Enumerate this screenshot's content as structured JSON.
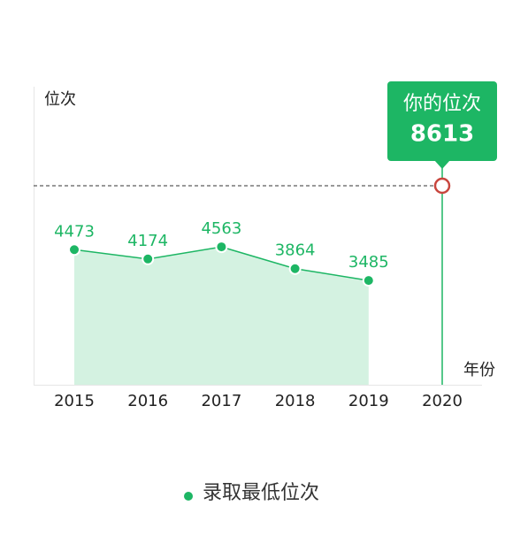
{
  "chart_data": {
    "type": "line",
    "y_label": "位次",
    "x_label": "年份",
    "categories": [
      "2015",
      "2016",
      "2017",
      "2018",
      "2019",
      "2020"
    ],
    "series": [
      {
        "name": "录取最低位次",
        "color": "#1db664",
        "fill": "#d4f2e1",
        "values": [
          4473,
          4174,
          4563,
          3864,
          3485,
          null
        ]
      }
    ],
    "ylim": [
      0,
      9500
    ],
    "highlight": {
      "label": "你的位次",
      "value": 8613,
      "category_index": 5,
      "color": "#1db664",
      "marker_color": "#c8463e"
    }
  }
}
